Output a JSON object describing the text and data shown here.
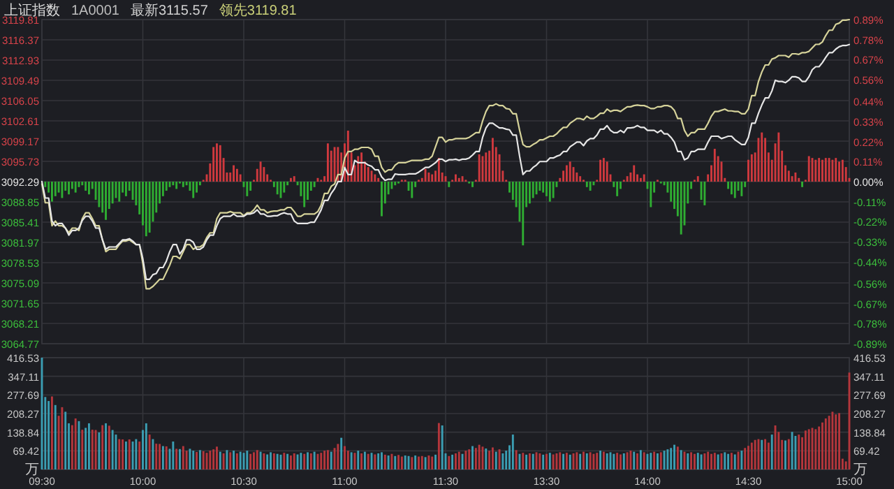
{
  "chart_data": [
    {
      "type": "line",
      "title": "上证指数",
      "subtitle": "1A0001",
      "annotations": [
        "最新3115.57",
        "领先3119.81"
      ],
      "grid": true,
      "tick_labels": "y",
      "categories": [
        null,
        null,
        null,
        null,
        null,
        null,
        null,
        null,
        null,
        null,
        null,
        null,
        null,
        null,
        null,
        null,
        null,
        null,
        null,
        null,
        null,
        null,
        null,
        null,
        null,
        null,
        null,
        null,
        null,
        null,
        null,
        null,
        null,
        null,
        null,
        null,
        null,
        null,
        null,
        null,
        null,
        null,
        null,
        null,
        null,
        null,
        null,
        null,
        null,
        null,
        null,
        null,
        null,
        null,
        null,
        null,
        null,
        null,
        null,
        null,
        null,
        null,
        null,
        null,
        null,
        null,
        null,
        null,
        null,
        null,
        null,
        null,
        null,
        null,
        null,
        null,
        null,
        null,
        null,
        null,
        null,
        null,
        null,
        null,
        null,
        null,
        null,
        null,
        null,
        null,
        null,
        null,
        null,
        null,
        null,
        null,
        null,
        null,
        null,
        null,
        null,
        null,
        null,
        null,
        null,
        null,
        null,
        null,
        null,
        null,
        null,
        null,
        null,
        null,
        null,
        null,
        null,
        null,
        null,
        null,
        null,
        null,
        null,
        null,
        null,
        null,
        null,
        null,
        null,
        null,
        null,
        null,
        null,
        null,
        null,
        null,
        null,
        null,
        null,
        null,
        null,
        null,
        null,
        null,
        null,
        null,
        null,
        null,
        null,
        null,
        null,
        null,
        null,
        null,
        null,
        null,
        null,
        null,
        null,
        null,
        null,
        null,
        null,
        null,
        null,
        null,
        null,
        null,
        null,
        null,
        null,
        null,
        null,
        null,
        null,
        null,
        null,
        null,
        null,
        null,
        null,
        null,
        null,
        null,
        null,
        null,
        null,
        null,
        null,
        null,
        null,
        null,
        null,
        null,
        null,
        null,
        null,
        null,
        null,
        null,
        null,
        null,
        null,
        null,
        null,
        null,
        null,
        null,
        null,
        null,
        null,
        null,
        null,
        null,
        null,
        null,
        null,
        null,
        null,
        null,
        null,
        null,
        null,
        null,
        null,
        null,
        null,
        null,
        null,
        null,
        null,
        null,
        null,
        null,
        null,
        null,
        null,
        null,
        null,
        null,
        null
      ],
      "ylim": [
        3064.77,
        3119.81
      ],
      "yticks": [
        3064.77,
        3068.21,
        3071.65,
        3075.09,
        3078.53,
        3081.97,
        3085.41,
        3088.85,
        3092.29,
        3095.73,
        3099.17,
        3102.61,
        3106.05,
        3109.49,
        3112.93,
        3116.37,
        3119.81
      ],
      "y2lim": [
        -0.89,
        0.89
      ],
      "y2ticks": [
        {
          "value": -0.89,
          "label": "-0.89%"
        },
        {
          "value": -0.78,
          "label": "-0.78%"
        },
        {
          "value": -0.67,
          "label": "-0.67%"
        },
        {
          "value": -0.56,
          "label": "-0.56%"
        },
        {
          "value": -0.44,
          "label": "-0.44%"
        },
        {
          "value": -0.33,
          "label": "-0.33%"
        },
        {
          "value": -0.22,
          "label": "-0.22%"
        },
        {
          "value": -0.11,
          "label": "-0.11%"
        },
        {
          "value": 0,
          "label": "0.00%"
        },
        {
          "value": 0.11,
          "label": "0.11%"
        },
        {
          "value": 0.22,
          "label": "0.22%"
        },
        {
          "value": 0.33,
          "label": "0.33%"
        },
        {
          "value": 0.44,
          "label": "0.44%"
        },
        {
          "value": 0.56,
          "label": "0.56%"
        },
        {
          "value": 0.67,
          "label": "0.67%"
        },
        {
          "value": 0.78,
          "label": "0.78%"
        },
        {
          "value": 0.89,
          "label": "0.89%"
        }
      ],
      "series": [
        {
          "type": "bar",
          "axis": "y2",
          "values": [
            0,
            -0.03,
            -0.06,
            -0.11,
            -0.08,
            -0.06,
            -0.09,
            -0.05,
            -0.07,
            -0.04,
            -0.06,
            -0.03,
            -0.02,
            -0.05,
            -0.07,
            -0.04,
            -0.1,
            -0.14,
            -0.17,
            -0.21,
            -0.15,
            -0.12,
            -0.09,
            -0.11,
            -0.06,
            -0.08,
            -0.05,
            -0.1,
            -0.13,
            -0.18,
            -0.24,
            -0.3,
            -0.28,
            -0.22,
            -0.17,
            -0.12,
            -0.08,
            -0.05,
            -0.03,
            -0.02,
            -0.04,
            -0.01,
            -0.03,
            -0.02,
            -0.05,
            -0.09,
            -0.06,
            -0.02,
            0.01,
            0.04,
            0.1,
            0.19,
            0.21,
            0.2,
            0.13,
            0.05,
            0.05,
            0.09,
            0.07,
            0.04,
            -0.03,
            -0.08,
            -0.05,
            0.01,
            0.07,
            0.11,
            0.08,
            0.04,
            0.01,
            -0.03,
            -0.07,
            -0.09,
            -0.06,
            -0.02,
            0.02,
            0.03,
            -0.02,
            -0.08,
            -0.14,
            -0.1,
            -0.05,
            -0.03,
            0.02,
            0.01,
            0.03,
            0.21,
            0.17,
            0.19,
            0.19,
            0.16,
            0.21,
            0.28,
            0.16,
            0.09,
            0.14,
            0.16,
            0.11,
            0.08,
            0.06,
            0.04,
            0.02,
            -0.19,
            -0.12,
            -0.07,
            -0.04,
            -0.02,
            -0.01,
            0.01,
            0.01,
            -0.05,
            -0.09,
            -0.03,
            0.01,
            0.02,
            0.07,
            0.05,
            0.04,
            0.06,
            0.13,
            0.05,
            0.03,
            -0.03,
            0.01,
            0.04,
            0.02,
            0.03,
            0.01,
            -0.01,
            -0.03,
            0.01,
            0.15,
            0.14,
            0.16,
            0.17,
            0.24,
            0.19,
            0.15,
            0.06,
            0.01,
            -0.06,
            -0.1,
            -0.14,
            -0.22,
            -0.35,
            -0.14,
            -0.12,
            -0.09,
            -0.07,
            -0.05,
            -0.06,
            -0.08,
            -0.11,
            -0.09,
            -0.03,
            0.02,
            0.06,
            0.09,
            0.11,
            0.08,
            0.05,
            0.03,
            0.01,
            -0.03,
            -0.05,
            -0.02,
            0.01,
            0.12,
            0.13,
            0.11,
            0.04,
            -0.03,
            -0.08,
            -0.04,
            0.01,
            0.03,
            0.05,
            0.09,
            0.04,
            0.02,
            0.04,
            -0.04,
            -0.14,
            -0.06,
            0.01,
            -0.01,
            -0.02,
            -0.06,
            -0.11,
            -0.15,
            -0.19,
            -0.29,
            -0.24,
            -0.12,
            -0.04,
            0.01,
            0.03,
            -0.1,
            -0.13,
            0.04,
            0.09,
            0.18,
            0.14,
            0.11,
            0.02,
            -0.04,
            -0.07,
            -0.09,
            -0.05,
            -0.08,
            -0.03,
            0.12,
            0.15,
            0.16,
            0.24,
            0.27,
            0.24,
            0.16,
            0.12,
            0.21,
            0.27,
            0.17,
            0.09,
            0.06,
            0.03,
            0.05,
            0.02,
            -0.03,
            0.01,
            0.14,
            0.13,
            0.12,
            0.13,
            0.12,
            0.13,
            0.13,
            0.12,
            0.13,
            0.11,
            0.12,
            0.08,
            0.02
          ],
          "colors": [
            "#d0393e",
            "#2fae32",
            "#2fae32",
            "#2fae32",
            "#2fae32",
            "#2fae32",
            "#2fae32",
            "#2fae32",
            "#2fae32",
            "#2fae32",
            "#2fae32",
            "#2fae32",
            "#2fae32",
            "#2fae32",
            "#2fae32",
            "#2fae32",
            "#2fae32",
            "#2fae32",
            "#2fae32",
            "#2fae32",
            "#2fae32",
            "#2fae32",
            "#2fae32",
            "#2fae32",
            "#2fae32",
            "#2fae32",
            "#2fae32",
            "#2fae32",
            "#2fae32",
            "#2fae32",
            "#2fae32",
            "#2fae32",
            "#2fae32",
            "#2fae32",
            "#2fae32",
            "#2fae32",
            "#2fae32",
            "#2fae32",
            "#2fae32",
            "#2fae32",
            "#2fae32",
            "#2fae32",
            "#2fae32",
            "#2fae32",
            "#2fae32",
            "#2fae32",
            "#2fae32",
            "#2fae32",
            "#d0393e",
            "#d0393e",
            "#d0393e",
            "#d0393e",
            "#d0393e",
            "#d0393e",
            "#d0393e",
            "#d0393e",
            "#d0393e",
            "#d0393e",
            "#d0393e",
            "#d0393e",
            "#2fae32",
            "#2fae32",
            "#2fae32",
            "#d0393e",
            "#d0393e",
            "#d0393e",
            "#d0393e",
            "#d0393e",
            "#d0393e",
            "#2fae32",
            "#2fae32",
            "#2fae32",
            "#2fae32",
            "#2fae32",
            "#d0393e",
            "#d0393e",
            "#2fae32",
            "#2fae32",
            "#2fae32",
            "#2fae32",
            "#2fae32",
            "#2fae32",
            "#d0393e",
            "#d0393e",
            "#d0393e",
            "#d0393e",
            "#d0393e",
            "#d0393e",
            "#d0393e",
            "#d0393e",
            "#d0393e",
            "#d0393e",
            "#d0393e",
            "#d0393e",
            "#d0393e",
            "#d0393e",
            "#d0393e",
            "#d0393e",
            "#d0393e",
            "#d0393e",
            "#d0393e",
            "#2fae32",
            "#2fae32",
            "#2fae32",
            "#2fae32",
            "#2fae32",
            "#2fae32",
            "#d0393e",
            "#d0393e",
            "#2fae32",
            "#2fae32",
            "#2fae32",
            "#d0393e",
            "#d0393e",
            "#d0393e",
            "#d0393e",
            "#d0393e",
            "#d0393e",
            "#d0393e",
            "#d0393e",
            "#d0393e",
            "#2fae32",
            "#d0393e",
            "#d0393e",
            "#d0393e",
            "#d0393e",
            "#d0393e",
            "#2fae32",
            "#2fae32",
            "#d0393e",
            "#d0393e",
            "#d0393e",
            "#d0393e",
            "#d0393e",
            "#d0393e",
            "#d0393e",
            "#d0393e",
            "#d0393e",
            "#d0393e",
            "#2fae32",
            "#2fae32",
            "#2fae32",
            "#2fae32",
            "#2fae32",
            "#2fae32",
            "#2fae32",
            "#2fae32",
            "#2fae32",
            "#2fae32",
            "#2fae32",
            "#2fae32",
            "#2fae32",
            "#2fae32",
            "#2fae32",
            "#d0393e",
            "#d0393e",
            "#d0393e",
            "#d0393e",
            "#d0393e",
            "#d0393e",
            "#d0393e",
            "#d0393e",
            "#2fae32",
            "#2fae32",
            "#2fae32",
            "#d0393e",
            "#d0393e",
            "#d0393e",
            "#d0393e",
            "#d0393e",
            "#2fae32",
            "#2fae32",
            "#2fae32",
            "#d0393e",
            "#d0393e",
            "#d0393e",
            "#d0393e",
            "#d0393e",
            "#d0393e",
            "#d0393e",
            "#2fae32",
            "#2fae32",
            "#2fae32",
            "#d0393e",
            "#2fae32",
            "#2fae32",
            "#2fae32",
            "#2fae32",
            "#2fae32",
            "#2fae32",
            "#2fae32",
            "#2fae32",
            "#2fae32",
            "#2fae32",
            "#d0393e",
            "#d0393e",
            "#2fae32",
            "#2fae32",
            "#d0393e",
            "#d0393e",
            "#d0393e",
            "#d0393e",
            "#d0393e",
            "#d0393e",
            "#2fae32",
            "#2fae32",
            "#2fae32",
            "#2fae32",
            "#2fae32",
            "#2fae32",
            "#d0393e",
            "#d0393e",
            "#d0393e",
            "#d0393e",
            "#d0393e",
            "#d0393e",
            "#d0393e",
            "#d0393e",
            "#d0393e",
            "#d0393e",
            "#d0393e",
            "#d0393e",
            "#d0393e",
            "#d0393e",
            "#d0393e",
            "#d0393e",
            "#2fae32",
            "#d0393e",
            "#d0393e",
            "#d0393e",
            "#d0393e",
            "#d0393e",
            "#d0393e",
            "#d0393e",
            "#d0393e",
            "#d0393e",
            "#d0393e",
            "#d0393e",
            "#d0393e",
            "#d0393e",
            "#d0393e"
          ]
        },
        {
          "color": "#d6d39a",
          "values": [
            3091.9,
            3088.7,
            3088.7,
            3084.8,
            3085.6,
            3084.8,
            3084.8,
            3084.4,
            3083.6,
            3084.4,
            3084.4,
            3084.0,
            3086.0,
            3087.0,
            3087.0,
            3086.0,
            3084.8,
            3084.8,
            3082.4,
            3080.4,
            3080.8,
            3080.8,
            3080.8,
            3081.6,
            3082.2,
            3082.2,
            3082.4,
            3082.0,
            3081.6,
            3081.6,
            3078.4,
            3074.1,
            3074.1,
            3074.5,
            3075.1,
            3075.7,
            3075.7,
            3076.9,
            3078.1,
            3079.6,
            3079.6,
            3079.2,
            3080.4,
            3081.6,
            3081.6,
            3080.8,
            3081.2,
            3081.2,
            3081.6,
            3082.8,
            3083.6,
            3083.6,
            3086.0,
            3087.0,
            3087.0,
            3087.0,
            3087.2,
            3087.0,
            3087.0,
            3087.0,
            3086.5,
            3087.0,
            3087.0,
            3087.5,
            3088.3,
            3087.5,
            3087.5,
            3087.0,
            3087.2,
            3087.3,
            3087.3,
            3087.5,
            3087.5,
            3087.9,
            3087.9,
            3087.2,
            3086.4,
            3086.4,
            3086.8,
            3086.8,
            3086.8,
            3086.8,
            3087.2,
            3088.3,
            3090.3,
            3090.3,
            3091.5,
            3091.9,
            3093.5,
            3093.5,
            3096.3,
            3097.4,
            3097.4,
            3097.8,
            3097.8,
            3098.1,
            3098.1,
            3098.1,
            3097.8,
            3096.6,
            3096.6,
            3094.7,
            3093.9,
            3094.3,
            3094.3,
            3095.1,
            3095.5,
            3095.5,
            3095.5,
            3095.7,
            3095.9,
            3095.9,
            3095.9,
            3095.9,
            3096.1,
            3096.1,
            3096.6,
            3098.2,
            3099.8,
            3099.8,
            3099.0,
            3099.4,
            3099.4,
            3099.6,
            3099.6,
            3099.6,
            3099.6,
            3099.8,
            3100.2,
            3100.6,
            3100.6,
            3102.6,
            3104.2,
            3105.2,
            3105.2,
            3105.5,
            3105.2,
            3105.2,
            3104.7,
            3104.6,
            3103.8,
            3103.8,
            3101.0,
            3098.6,
            3098.2,
            3098.2,
            3098.6,
            3098.9,
            3099.4,
            3099.4,
            3099.7,
            3100.0,
            3100.0,
            3100.4,
            3101.0,
            3101.5,
            3101.5,
            3102.2,
            3102.6,
            3103.0,
            3103.0,
            3102.8,
            3103.4,
            3103.0,
            3103.0,
            3103.4,
            3103.9,
            3103.9,
            3104.6,
            3104.2,
            3104.4,
            3104.4,
            3104.2,
            3104.6,
            3105.0,
            3105.0,
            3105.2,
            3105.3,
            3105.2,
            3105.2,
            3105.0,
            3104.7,
            3104.7,
            3105.0,
            3105.0,
            3105.2,
            3105.2,
            3105.0,
            3104.4,
            3103.0,
            3103.0,
            3101.0,
            3100.0,
            3100.6,
            3100.6,
            3101.2,
            3101.2,
            3101.2,
            3102.2,
            3103.4,
            3104.2,
            3104.2,
            3104.4,
            3104.6,
            3104.3,
            3104.3,
            3104.2,
            3104.2,
            3103.8,
            3103.8,
            3104.6,
            3106.9,
            3106.9,
            3109.3,
            3110.9,
            3112.1,
            3112.1,
            3113.1,
            3113.3,
            3113.7,
            3113.7,
            3113.7,
            3113.4,
            3114.0,
            3114.0,
            3113.9,
            3114.2,
            3114.2,
            3114.4,
            3115.0,
            3115.6,
            3115.6,
            3116.0,
            3117.1,
            3118.0,
            3118.0,
            3119.0,
            3119.2,
            3119.7,
            3119.7,
            3119.81
          ]
        },
        {
          "color": "#e6e6e6",
          "values": [
            3092.3,
            3089.5,
            3089.5,
            3085.6,
            3084.8,
            3085.2,
            3085.2,
            3084.4,
            3083.2,
            3084.0,
            3084.0,
            3084.4,
            3085.7,
            3086.4,
            3086.4,
            3085.6,
            3084.4,
            3084.4,
            3082.4,
            3080.8,
            3081.2,
            3081.2,
            3081.2,
            3081.8,
            3082.4,
            3082.4,
            3082.6,
            3082.2,
            3081.6,
            3081.6,
            3079.2,
            3075.7,
            3075.7,
            3076.5,
            3076.7,
            3077.7,
            3077.7,
            3078.8,
            3080.4,
            3081.6,
            3081.6,
            3080.0,
            3080.8,
            3082.4,
            3082.4,
            3082.0,
            3080.8,
            3080.8,
            3081.2,
            3082.4,
            3083.2,
            3083.2,
            3084.8,
            3086.0,
            3086.4,
            3086.4,
            3086.4,
            3086.8,
            3086.4,
            3086.4,
            3086.4,
            3086.8,
            3086.8,
            3087.0,
            3087.5,
            3086.8,
            3086.8,
            3086.4,
            3086.4,
            3086.5,
            3086.5,
            3086.8,
            3087.0,
            3086.8,
            3086.8,
            3085.6,
            3085.2,
            3085.2,
            3085.2,
            3085.2,
            3085.4,
            3085.4,
            3086.4,
            3087.5,
            3089.1,
            3089.1,
            3090.3,
            3091.1,
            3092.3,
            3092.3,
            3094.7,
            3093.5,
            3093.5,
            3095.9,
            3095.5,
            3095.5,
            3095.5,
            3095.1,
            3094.9,
            3094.3,
            3094.3,
            3093.1,
            3092.5,
            3092.7,
            3092.7,
            3093.6,
            3093.5,
            3093.5,
            3093.5,
            3093.6,
            3093.6,
            3093.6,
            3093.9,
            3094.3,
            3094.7,
            3094.7,
            3095.1,
            3095.5,
            3096.1,
            3096.1,
            3095.7,
            3096.0,
            3096.0,
            3096.1,
            3095.9,
            3096.1,
            3096.1,
            3096.3,
            3096.8,
            3097.4,
            3097.4,
            3099.8,
            3101.4,
            3102.2,
            3102.2,
            3101.8,
            3101.4,
            3101.4,
            3101.2,
            3101.1,
            3100.2,
            3100.2,
            3096.6,
            3093.5,
            3094.1,
            3094.1,
            3094.7,
            3095.1,
            3095.7,
            3095.7,
            3095.7,
            3096.3,
            3096.3,
            3096.6,
            3096.8,
            3097.4,
            3097.4,
            3098.2,
            3098.6,
            3099.0,
            3099.0,
            3098.4,
            3099.2,
            3099.6,
            3099.6,
            3100.2,
            3101.2,
            3101.2,
            3101.8,
            3101.0,
            3100.6,
            3100.6,
            3101.0,
            3100.6,
            3101.4,
            3101.4,
            3101.5,
            3101.8,
            3101.5,
            3101.5,
            3101.0,
            3101.0,
            3101.0,
            3100.6,
            3101.0,
            3100.4,
            3100.4,
            3099.8,
            3099.0,
            3097.4,
            3097.4,
            3096.0,
            3096.3,
            3097.4,
            3097.4,
            3097.8,
            3097.8,
            3097.8,
            3099.0,
            3100.0,
            3100.0,
            3100.0,
            3099.6,
            3099.8,
            3100.0,
            3100.0,
            3099.4,
            3099.0,
            3098.6,
            3098.6,
            3099.8,
            3102.2,
            3102.2,
            3103.9,
            3105.3,
            3106.5,
            3106.5,
            3107.7,
            3109.5,
            3109.3,
            3109.3,
            3109.1,
            3109.5,
            3110.1,
            3110.1,
            3109.9,
            3109.3,
            3109.3,
            3110.1,
            3111.3,
            3111.8,
            3111.8,
            3112.5,
            3113.4,
            3114.2,
            3114.2,
            3114.8,
            3115.2,
            3115.4,
            3115.4,
            3115.57
          ]
        }
      ]
    },
    {
      "type": "bar",
      "grid": true,
      "categories": [
        "09:30",
        null,
        null,
        null,
        null,
        null,
        null,
        null,
        null,
        null,
        null,
        null,
        null,
        null,
        null,
        null,
        null,
        null,
        null,
        null,
        null,
        null,
        null,
        null,
        null,
        null,
        null,
        null,
        null,
        null,
        "10:00",
        null,
        null,
        null,
        null,
        null,
        null,
        null,
        null,
        null,
        null,
        null,
        null,
        null,
        null,
        null,
        null,
        null,
        null,
        null,
        null,
        null,
        null,
        null,
        null,
        null,
        null,
        null,
        null,
        null,
        "10:30",
        null,
        null,
        null,
        null,
        null,
        null,
        null,
        null,
        null,
        null,
        null,
        null,
        null,
        null,
        null,
        null,
        null,
        null,
        null,
        null,
        null,
        null,
        null,
        null,
        null,
        null,
        null,
        null,
        null,
        "11:00",
        null,
        null,
        null,
        null,
        null,
        null,
        null,
        null,
        null,
        null,
        null,
        null,
        null,
        null,
        null,
        null,
        null,
        null,
        null,
        null,
        null,
        null,
        null,
        null,
        null,
        null,
        null,
        null,
        null,
        "11:30",
        null,
        null,
        null,
        null,
        null,
        null,
        null,
        null,
        null,
        null,
        null,
        null,
        null,
        null,
        null,
        null,
        null,
        null,
        null,
        null,
        null,
        null,
        null,
        null,
        null,
        null,
        null,
        null,
        null,
        "13:30",
        null,
        null,
        null,
        null,
        null,
        null,
        null,
        null,
        null,
        null,
        null,
        null,
        null,
        null,
        null,
        null,
        null,
        null,
        null,
        null,
        null,
        null,
        null,
        null,
        null,
        null,
        null,
        null,
        null,
        "14:00",
        null,
        null,
        null,
        null,
        null,
        null,
        null,
        null,
        null,
        null,
        null,
        null,
        null,
        null,
        null,
        null,
        null,
        null,
        null,
        null,
        null,
        null,
        null,
        null,
        null,
        null,
        null,
        null,
        null,
        "14:30",
        null,
        null,
        null,
        null,
        null,
        null,
        null,
        null,
        null,
        null,
        null,
        null,
        null,
        null,
        null,
        null,
        null,
        null,
        null,
        null,
        null,
        null,
        null,
        null,
        null,
        null,
        null,
        null,
        null,
        "15:00"
      ],
      "ylim": [
        0,
        416.53
      ],
      "yticks": [
        {
          "value": 0,
          "label": "万"
        },
        69.42,
        138.84,
        208.27,
        277.69,
        347.11,
        416.53
      ],
      "y2lim": [
        0,
        416.53
      ],
      "y2ticks": [
        {
          "value": 0,
          "label": "万"
        },
        69.42,
        138.84,
        208.27,
        277.69,
        347.11,
        416.53
      ],
      "values": [
        416.53,
        270,
        255,
        272,
        240,
        200,
        232,
        215,
        172,
        165,
        190,
        180,
        148,
        155,
        172,
        148,
        147,
        138,
        165,
        172,
        163,
        147,
        130,
        113,
        112,
        104,
        112,
        104,
        113,
        104,
        147,
        172,
        130,
        113,
        96,
        95,
        87,
        86,
        77,
        104,
        77,
        76,
        87,
        70,
        77,
        70,
        65,
        72,
        68,
        62,
        70,
        75,
        85,
        66,
        60,
        72,
        64,
        70,
        60,
        66,
        62,
        70,
        58,
        64,
        72,
        66,
        60,
        56,
        64,
        60,
        58,
        55,
        62,
        58,
        52,
        60,
        56,
        62,
        58,
        64,
        60,
        66,
        58,
        62,
        70,
        72,
        66,
        80,
        95,
        118,
        87,
        70,
        64,
        62,
        70,
        60,
        66,
        58,
        62,
        56,
        60,
        64,
        55,
        52,
        58,
        50,
        54,
        48,
        52,
        50,
        46,
        52,
        48,
        50,
        46,
        52,
        48,
        55,
        173,
        164,
        60,
        50,
        55,
        60,
        66,
        58,
        70,
        75,
        87,
        80,
        92,
        85,
        78,
        70,
        82,
        66,
        75,
        60,
        70,
        90,
        130,
        72,
        58,
        62,
        55,
        60,
        58,
        64,
        60,
        55,
        58,
        62,
        56,
        60,
        64,
        58,
        62,
        55,
        60,
        64,
        58,
        66,
        60,
        64,
        58,
        62,
        70,
        66,
        60,
        64,
        58,
        62,
        56,
        60,
        64,
        70,
        66,
        60,
        72,
        64,
        58,
        62,
        66,
        60,
        64,
        70,
        75,
        80,
        92,
        85,
        72,
        66,
        60,
        64,
        58,
        62,
        56,
        60,
        66,
        58,
        62,
        56,
        60,
        64,
        58,
        62,
        56,
        66,
        70,
        80,
        88,
        100,
        110,
        113,
        110,
        113,
        100,
        130,
        164,
        140,
        110,
        108,
        113,
        140,
        125,
        130,
        120,
        145,
        150,
        155,
        150,
        160,
        175,
        190,
        200,
        215,
        205,
        210,
        40,
        30,
        361
      ],
      "colors": [
        "#3b9eb3",
        "#3b9eb3",
        "#3b9eb3",
        "#b5363c",
        "#3b9eb3",
        "#b5363c",
        "#b5363c",
        "#3b9eb3",
        "#3b9eb3",
        "#b5363c",
        "#b5363c",
        "#3b9eb3",
        "#b5363c",
        "#3b9eb3",
        "#3b9eb3",
        "#b5363c",
        "#b5363c",
        "#3b9eb3",
        "#b5363c",
        "#3b9eb3",
        "#b5363c",
        "#3b9eb3",
        "#3b9eb3",
        "#b5363c",
        "#b5363c",
        "#3b9eb3",
        "#b5363c",
        "#3b9eb3",
        "#3b9eb3",
        "#b5363c",
        "#3b9eb3",
        "#3b9eb3",
        "#b5363c",
        "#3b9eb3",
        "#b5363c",
        "#b5363c",
        "#3b9eb3",
        "#b5363c",
        "#3b9eb3",
        "#3b9eb3",
        "#b5363c",
        "#3b9eb3",
        "#b5363c",
        "#b5363c",
        "#3b9eb3",
        "#3b9eb3",
        "#b5363c",
        "#3b9eb3",
        "#b5363c",
        "#b5363c",
        "#b5363c",
        "#b5363c",
        "#b5363c",
        "#3b9eb3",
        "#b5363c",
        "#3b9eb3",
        "#b5363c",
        "#3b9eb3",
        "#b5363c",
        "#3b9eb3",
        "#3b9eb3",
        "#3b9eb3",
        "#b5363c",
        "#b5363c",
        "#b5363c",
        "#3b9eb3",
        "#b5363c",
        "#3b9eb3",
        "#3b9eb3",
        "#b5363c",
        "#3b9eb3",
        "#3b9eb3",
        "#b5363c",
        "#3b9eb3",
        "#b5363c",
        "#b5363c",
        "#3b9eb3",
        "#3b9eb3",
        "#b5363c",
        "#3b9eb3",
        "#b5363c",
        "#3b9eb3",
        "#b5363c",
        "#b5363c",
        "#b5363c",
        "#b5363c",
        "#3b9eb3",
        "#b5363c",
        "#b5363c",
        "#3b9eb3",
        "#b5363c",
        "#b5363c",
        "#3b9eb3",
        "#b5363c",
        "#3b9eb3",
        "#b5363c",
        "#3b9eb3",
        "#b5363c",
        "#3b9eb3",
        "#b5363c",
        "#3b9eb3",
        "#3b9eb3",
        "#b5363c",
        "#3b9eb3",
        "#b5363c",
        "#3b9eb3",
        "#b5363c",
        "#b5363c",
        "#3b9eb3",
        "#3b9eb3",
        "#b5363c",
        "#3b9eb3",
        "#b5363c",
        "#b5363c",
        "#3b9eb3",
        "#b5363c",
        "#b5363c",
        "#3b9eb3",
        "#b5363c",
        "#3b9eb3",
        "#3b9eb3",
        "#b5363c",
        "#3b9eb3",
        "#b5363c",
        "#b5363c",
        "#3b9eb3",
        "#b5363c",
        "#b5363c",
        "#3b9eb3",
        "#b5363c",
        "#b5363c",
        "#b5363c",
        "#3b9eb3",
        "#b5363c",
        "#b5363c",
        "#3b9eb3",
        "#b5363c",
        "#3b9eb3",
        "#3b9eb3",
        "#3b9eb3",
        "#3b9eb3",
        "#b5363c",
        "#3b9eb3",
        "#b5363c",
        "#3b9eb3",
        "#b5363c",
        "#3b9eb3",
        "#b5363c",
        "#b5363c",
        "#3b9eb3",
        "#b5363c",
        "#3b9eb3",
        "#b5363c",
        "#b5363c",
        "#b5363c",
        "#3b9eb3",
        "#b5363c",
        "#3b9eb3",
        "#b5363c",
        "#b5363c",
        "#3b9eb3",
        "#b5363c",
        "#3b9eb3",
        "#b5363c",
        "#b5363c",
        "#b5363c",
        "#3b9eb3",
        "#b5363c",
        "#3b9eb3",
        "#3b9eb3",
        "#3b9eb3",
        "#b5363c",
        "#b5363c",
        "#3b9eb3",
        "#b5363c",
        "#b5363c",
        "#3b9eb3",
        "#b5363c",
        "#3b9eb3",
        "#b5363c",
        "#3b9eb3",
        "#3b9eb3",
        "#b5363c",
        "#3b9eb3",
        "#b5363c",
        "#3b9eb3",
        "#3b9eb3",
        "#3b9eb3",
        "#3b9eb3",
        "#b5363c",
        "#3b9eb3",
        "#b5363c",
        "#3b9eb3",
        "#b5363c",
        "#b5363c",
        "#3b9eb3",
        "#3b9eb3",
        "#b5363c",
        "#b5363c",
        "#b5363c",
        "#b5363c",
        "#3b9eb3",
        "#b5363c",
        "#3b9eb3",
        "#3b9eb3",
        "#b5363c",
        "#3b9eb3",
        "#b5363c",
        "#3b9eb3",
        "#b5363c",
        "#b5363c",
        "#b5363c",
        "#b5363c",
        "#b5363c",
        "#3b9eb3",
        "#b5363c",
        "#b5363c",
        "#3b9eb3",
        "#b5363c",
        "#b5363c",
        "#b5363c",
        "#3b9eb3",
        "#b5363c",
        "#3b9eb3",
        "#3b9eb3",
        "#b5363c",
        "#b5363c",
        "#b5363c",
        "#b5363c",
        "#b5363c",
        "#b5363c",
        "#b5363c",
        "#b5363c",
        "#b5363c",
        "#b5363c",
        "#b5363c",
        "#b5363c",
        "#b5363c",
        "#b5363c",
        "#b5363c",
        "#b5363c"
      ]
    }
  ]
}
